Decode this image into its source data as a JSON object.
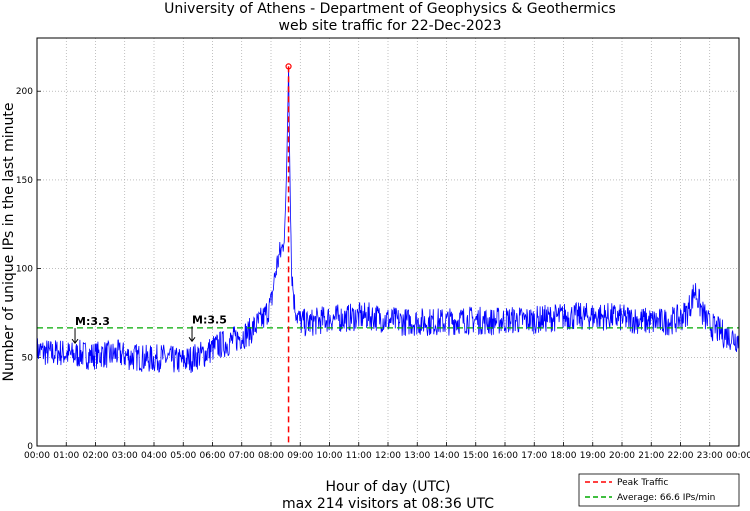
{
  "chart_data": {
    "type": "line",
    "title": "University of Athens - Department of Geophysics & Geothermics",
    "subtitle": "web site traffic for 22-Dec-2023",
    "xlabel": "Hour of day (UTC)",
    "xlabel2": "max 214 visitors at 08:36 UTC",
    "ylabel": "Number of unique IPs in the last minute",
    "xlim": [
      0,
      24
    ],
    "ylim": [
      0,
      230
    ],
    "grid": true,
    "x_ticks": [
      "00:00",
      "01:00",
      "02:00",
      "03:00",
      "04:00",
      "05:00",
      "06:00",
      "07:00",
      "08:00",
      "09:00",
      "10:00",
      "11:00",
      "12:00",
      "13:00",
      "14:00",
      "15:00",
      "16:00",
      "17:00",
      "18:00",
      "19:00",
      "20:00",
      "21:00",
      "22:00",
      "23:00",
      "00:00"
    ],
    "y_ticks": [
      0,
      50,
      100,
      150,
      200
    ],
    "series": [
      {
        "name": "unique IPs per minute",
        "color": "#0000ff",
        "x_hours": [
          0,
          0.25,
          0.5,
          0.75,
          1,
          1.25,
          1.5,
          1.75,
          2,
          2.25,
          2.5,
          2.75,
          3,
          3.25,
          3.5,
          3.75,
          4,
          4.25,
          4.5,
          4.75,
          5,
          5.25,
          5.5,
          5.75,
          6,
          6.25,
          6.5,
          6.75,
          7,
          7.25,
          7.5,
          7.75,
          8,
          8.1,
          8.2,
          8.3,
          8.4,
          8.5,
          8.6,
          8.7,
          8.8,
          8.9,
          9,
          9.25,
          9.5,
          9.75,
          10,
          10.5,
          11,
          11.5,
          12,
          12.5,
          13,
          13.5,
          14,
          14.5,
          15,
          15.5,
          16,
          16.5,
          17,
          17.5,
          18,
          18.5,
          19,
          19.5,
          20,
          20.5,
          21,
          21.5,
          22,
          22.25,
          22.5,
          22.75,
          23,
          23.5,
          24
        ],
        "values": [
          54,
          53,
          52,
          53,
          52,
          51,
          52,
          51,
          51,
          52,
          51,
          52,
          51,
          50,
          50,
          49,
          49,
          50,
          49,
          48,
          48,
          49,
          51,
          52,
          55,
          57,
          58,
          60,
          62,
          64,
          68,
          72,
          80,
          92,
          102,
          108,
          112,
          130,
          214,
          100,
          80,
          74,
          70,
          69,
          70,
          71,
          72,
          72,
          73,
          73,
          71,
          70,
          70,
          70,
          70,
          71,
          71,
          70,
          71,
          71,
          71,
          72,
          73,
          73,
          73,
          73,
          72,
          71,
          70,
          70,
          72,
          76,
          88,
          75,
          68,
          63,
          60
        ]
      }
    ],
    "peak": {
      "label": "Peak Traffic",
      "x_hours": 8.6,
      "value": 214,
      "color": "#ff0000"
    },
    "average": {
      "label": "Average: 66.6 IPs/min",
      "value": 66.6,
      "color": "#00aa00"
    },
    "annotations": [
      {
        "label": "M:3.3",
        "x_hours": 1.3,
        "value": 58
      },
      {
        "label": "M:3.5",
        "x_hours": 5.3,
        "value": 59
      }
    ],
    "legend_position": "bottom-right"
  }
}
